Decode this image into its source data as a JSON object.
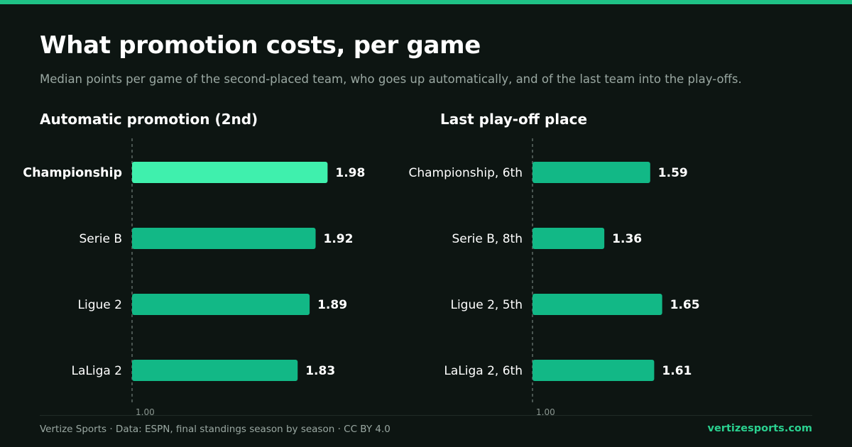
{
  "header": {
    "title": "What promotion costs, per game",
    "subtitle": "Median points per game of the second-placed team, who goes up automatically, and of the last team into the play-offs."
  },
  "colors": {
    "background": "#0d1512",
    "accent": "#1fc286",
    "bar": "#12b886",
    "bar_highlight": "#3ff0ad",
    "muted_text": "#9aa8a2"
  },
  "chart_data": [
    {
      "type": "bar",
      "orientation": "horizontal",
      "title": "Automatic promotion (2nd)",
      "categories": [
        "Championship",
        "Serie B",
        "Ligue 2",
        "LaLiga 2"
      ],
      "values": [
        1.98,
        1.92,
        1.89,
        1.83
      ],
      "value_labels": [
        "1.98",
        "1.92",
        "1.89",
        "1.83"
      ],
      "highlight_index": 0,
      "baseline": 1.0,
      "baseline_label": "1.00",
      "xlim": [
        1.0,
        2.41
      ]
    },
    {
      "type": "bar",
      "orientation": "horizontal",
      "title": "Last play-off place",
      "categories": [
        "Championship, 6th",
        "Serie B, 8th",
        "Ligue 2, 5th",
        "LaLiga 2, 6th"
      ],
      "values": [
        1.59,
        1.36,
        1.65,
        1.61
      ],
      "value_labels": [
        "1.59",
        "1.36",
        "1.65",
        "1.61"
      ],
      "highlight_index": null,
      "baseline": 1.0,
      "baseline_label": "1.00",
      "xlim": [
        1.0,
        2.41
      ]
    }
  ],
  "footer": {
    "source": "Vertize Sports · Data: ESPN, final standings season by season · CC BY 4.0",
    "site": "vertizesports.com"
  }
}
